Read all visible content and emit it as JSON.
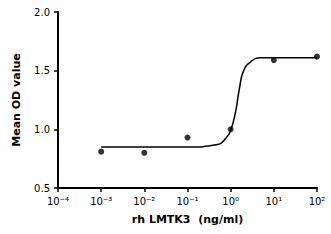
{
  "chart_data": {
    "type": "scatter",
    "x_label": "rh LMTK3  (ng/ml)",
    "y_label": "Mean OD value",
    "log": "x",
    "grid": false,
    "xlim": [
      0.0001,
      100
    ],
    "xticks": [
      {
        "value": 0.0001,
        "label": "10⁻⁴"
      },
      {
        "value": 0.001,
        "label": "10⁻³"
      },
      {
        "value": 0.01,
        "label": "10⁻²"
      },
      {
        "value": 0.1,
        "label": "10⁻¹"
      },
      {
        "value": 1,
        "label": "10⁰"
      },
      {
        "value": 10,
        "label": "10¹"
      },
      {
        "value": 100,
        "label": "10²"
      }
    ],
    "ylim": [
      0.5,
      2.0
    ],
    "yticks": [
      0.5,
      {
        "value": 1,
        "label": "1.0"
      },
      1.5,
      {
        "value": 2,
        "label": "2.0"
      }
    ],
    "series": [
      {
        "type": "scatter",
        "marker": "circle",
        "color": "#000000",
        "x": [
          0.001,
          0.01,
          0.1,
          1,
          10,
          100
        ],
        "values": [
          0.81,
          0.8,
          0.93,
          1.0,
          1.59,
          1.62
        ]
      },
      {
        "type": "line",
        "line_style": "solid",
        "color": "#000000",
        "x": [
          0.001,
          0.01,
          0.1,
          0.5,
          0.8,
          1,
          1.3,
          1.6,
          2,
          3,
          5,
          100
        ],
        "values": [
          0.85,
          0.85,
          0.85,
          0.87,
          0.93,
          0.99,
          1.15,
          1.35,
          1.5,
          1.58,
          1.61,
          1.61
        ]
      }
    ]
  }
}
